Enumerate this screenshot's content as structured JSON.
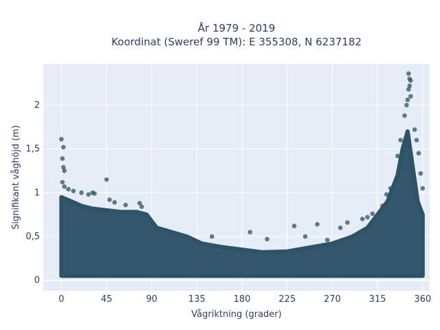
{
  "chart_data": {
    "type": "scatter",
    "title_line1": "År 1979 - 2019",
    "title_line2": "Koordinat (Sweref 99 TM): E 355308, N 6237182",
    "xlabel": "Vågriktning (grader)",
    "ylabel": "Signifikant våghöjd (m)",
    "xlim": [
      -18,
      367
    ],
    "ylim": [
      -0.12,
      2.47
    ],
    "xticks": [
      0,
      45,
      90,
      135,
      180,
      225,
      270,
      315,
      360
    ],
    "xtick_labels": [
      "0",
      "45",
      "90",
      "135",
      "180",
      "225",
      "270",
      "315",
      "360"
    ],
    "yticks": [
      0,
      0.5,
      1,
      1.5,
      2
    ],
    "ytick_labels": [
      "0",
      "0,5",
      "1",
      "1,5",
      "2"
    ],
    "grid": true,
    "marker_color": "#2e5266",
    "plot_background": "#e5ecf6",
    "envelope": {
      "x": [
        0,
        10,
        20,
        30,
        45,
        60,
        75,
        85,
        95,
        110,
        125,
        140,
        160,
        180,
        200,
        225,
        250,
        270,
        290,
        305,
        315,
        325,
        335,
        340,
        345,
        350,
        355,
        360
      ],
      "low": [
        0.05,
        0.05,
        0.05,
        0.05,
        0.05,
        0.05,
        0.05,
        0.05,
        0.05,
        0.05,
        0.05,
        0.05,
        0.05,
        0.05,
        0.05,
        0.05,
        0.05,
        0.05,
        0.05,
        0.05,
        0.05,
        0.05,
        0.05,
        0.05,
        0.05,
        0.05,
        0.05,
        0.05
      ],
      "high": [
        0.95,
        0.9,
        0.85,
        0.82,
        0.8,
        0.78,
        0.78,
        0.75,
        0.6,
        0.55,
        0.5,
        0.42,
        0.38,
        0.35,
        0.32,
        0.33,
        0.38,
        0.42,
        0.5,
        0.6,
        0.75,
        0.9,
        1.2,
        1.5,
        1.7,
        1.3,
        0.9,
        0.75
      ]
    },
    "outliers": [
      {
        "x": 0,
        "y": 1.61
      },
      {
        "x": 2,
        "y": 1.52
      },
      {
        "x": 1,
        "y": 1.39
      },
      {
        "x": 2,
        "y": 1.29
      },
      {
        "x": 3,
        "y": 1.25
      },
      {
        "x": 1,
        "y": 1.12
      },
      {
        "x": 3,
        "y": 1.07
      },
      {
        "x": 7,
        "y": 1.04
      },
      {
        "x": 12,
        "y": 1.02
      },
      {
        "x": 20,
        "y": 1.0
      },
      {
        "x": 27,
        "y": 0.98
      },
      {
        "x": 31,
        "y": 1.0
      },
      {
        "x": 33,
        "y": 0.99
      },
      {
        "x": 45,
        "y": 1.15
      },
      {
        "x": 48,
        "y": 0.92
      },
      {
        "x": 53,
        "y": 0.89
      },
      {
        "x": 64,
        "y": 0.86
      },
      {
        "x": 78,
        "y": 0.88
      },
      {
        "x": 80,
        "y": 0.84
      },
      {
        "x": 150,
        "y": 0.5
      },
      {
        "x": 188,
        "y": 0.55
      },
      {
        "x": 205,
        "y": 0.47
      },
      {
        "x": 232,
        "y": 0.62
      },
      {
        "x": 243,
        "y": 0.5
      },
      {
        "x": 255,
        "y": 0.64
      },
      {
        "x": 265,
        "y": 0.46
      },
      {
        "x": 278,
        "y": 0.6
      },
      {
        "x": 285,
        "y": 0.66
      },
      {
        "x": 300,
        "y": 0.7
      },
      {
        "x": 305,
        "y": 0.72
      },
      {
        "x": 310,
        "y": 0.76
      },
      {
        "x": 320,
        "y": 0.85
      },
      {
        "x": 324,
        "y": 0.98
      },
      {
        "x": 328,
        "y": 1.05
      },
      {
        "x": 335,
        "y": 1.42
      },
      {
        "x": 338,
        "y": 1.6
      },
      {
        "x": 342,
        "y": 1.88
      },
      {
        "x": 344,
        "y": 2.0
      },
      {
        "x": 345,
        "y": 2.06
      },
      {
        "x": 346,
        "y": 2.18
      },
      {
        "x": 347,
        "y": 2.22
      },
      {
        "x": 347,
        "y": 2.3
      },
      {
        "x": 346,
        "y": 2.36
      },
      {
        "x": 348,
        "y": 2.28
      },
      {
        "x": 348,
        "y": 2.1
      },
      {
        "x": 352,
        "y": 1.72
      },
      {
        "x": 354,
        "y": 1.6
      },
      {
        "x": 356,
        "y": 1.45
      },
      {
        "x": 358,
        "y": 1.22
      },
      {
        "x": 360,
        "y": 1.05
      }
    ]
  }
}
